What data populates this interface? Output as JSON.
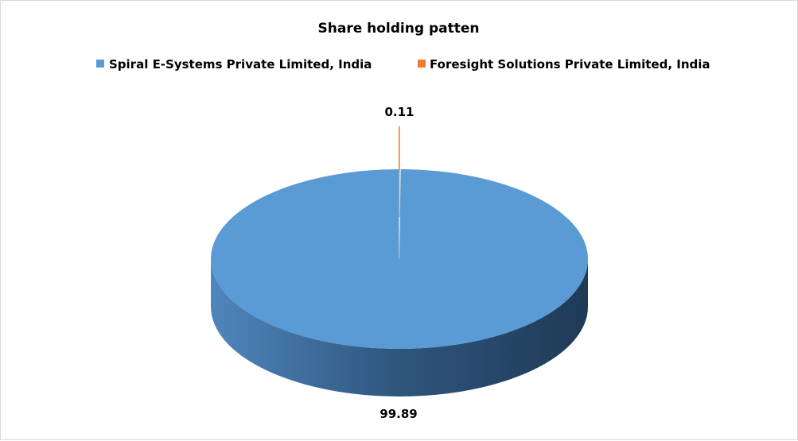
{
  "chart_data": {
    "type": "pie",
    "style": "3d-exploded",
    "title": "Share holding patten",
    "legend_position": "top",
    "slices": [
      {
        "name": "Spiral E-Systems Private Limited, India",
        "value": 99.89,
        "label": "99.89",
        "color": "#5b9bd5"
      },
      {
        "name": "Foresight Solutions Private Limited, India",
        "value": 0.11,
        "label": "0.11",
        "color": "#ed7d31"
      }
    ]
  }
}
